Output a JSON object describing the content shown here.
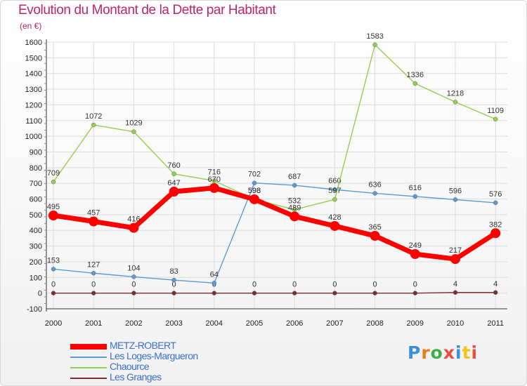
{
  "title": "Evolution du Montant de la Dette par Habitant",
  "subtitle": "(en €)",
  "logo_text": "Proxiti",
  "logo_colors": [
    "#3b8fd9",
    "#e87d1e",
    "#3fae49",
    "#e84e3f",
    "#3b8fd9",
    "#f4c21b",
    "#e84e3f"
  ],
  "chart_data": {
    "type": "line",
    "x": [
      "2000",
      "2001",
      "2002",
      "2003",
      "2004",
      "2005",
      "2006",
      "2007",
      "2008",
      "2009",
      "2010",
      "2011"
    ],
    "ylim": [
      -100,
      1600
    ],
    "yticks": [
      -100,
      0,
      100,
      200,
      300,
      400,
      500,
      600,
      700,
      800,
      900,
      1000,
      1100,
      1200,
      1300,
      1400,
      1500,
      1600
    ],
    "grid": true,
    "legend_position": "bottom-left",
    "series": [
      {
        "name": "Les Granges",
        "color": "#7a2e2e",
        "values": [
          0,
          0,
          0,
          0,
          0,
          0,
          0,
          0,
          0,
          0,
          4,
          4
        ],
        "labels": [
          "0",
          "0",
          "0",
          "0",
          "0",
          "0",
          "0",
          "0",
          "0",
          "0",
          "4",
          "4"
        ]
      },
      {
        "name": "Les Loges-Margueron",
        "color": "#5b9bd5",
        "values": [
          153,
          127,
          104,
          83,
          64,
          702,
          687,
          660,
          636,
          616,
          596,
          576
        ],
        "labels": [
          "153",
          "127",
          "104",
          "83",
          "64",
          "702",
          "687",
          "660",
          "636",
          "616",
          "596",
          "576"
        ]
      },
      {
        "name": "Chaource",
        "color": "#92d050",
        "values": [
          709,
          1072,
          1029,
          760,
          716,
          598,
          532,
          597,
          1583,
          1336,
          1218,
          1109
        ],
        "labels": [
          "709",
          "1072",
          "1029",
          "760",
          "716",
          "598",
          "532",
          "597",
          "1583",
          "1336",
          "1218",
          "1109"
        ]
      },
      {
        "name": "METZ-ROBERT",
        "color": "#ff0000",
        "values": [
          495,
          457,
          416,
          647,
          670,
          598,
          489,
          428,
          365,
          249,
          217,
          382
        ],
        "labels": [
          "495",
          "457",
          "416",
          "647",
          "670",
          "598",
          "489",
          "428",
          "365",
          "249",
          "217",
          "382"
        ]
      }
    ],
    "legend": [
      {
        "name": "METZ-ROBERT",
        "color": "#ff0000",
        "text_color": "#3a6fd0"
      },
      {
        "name": "Les Loges-Margueron",
        "color": "#5b9bd5",
        "text_color": "#3a6fd0"
      },
      {
        "name": "Chaource",
        "color": "#92d050",
        "text_color": "#3a6fd0"
      },
      {
        "name": "Les Granges",
        "color": "#7a2e2e",
        "text_color": "#3a6fd0"
      }
    ]
  }
}
